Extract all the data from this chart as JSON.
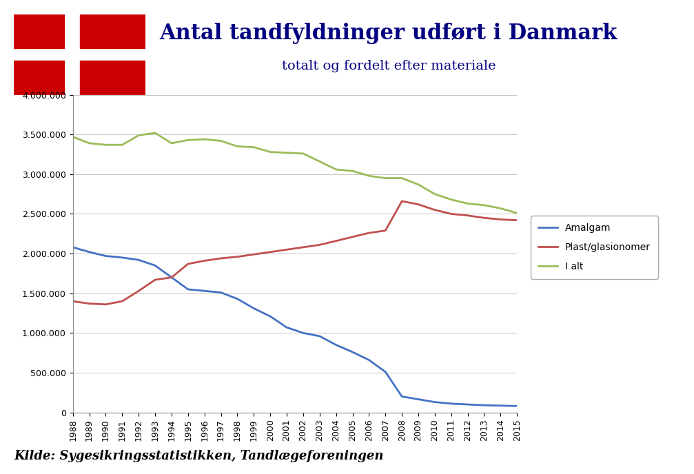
{
  "title_line1": "Antal tandfyldninger udført i Danmark",
  "title_line2": "totalt og fordelt efter materiale",
  "title_color": "#000080",
  "subtitle_color": "#000080",
  "background_color": "#ffffff",
  "chart_bg_color": "#ffffff",
  "years": [
    1988,
    1989,
    1990,
    1991,
    1992,
    1993,
    1994,
    1995,
    1996,
    1997,
    1998,
    1999,
    2000,
    2001,
    2002,
    2003,
    2004,
    2005,
    2006,
    2007,
    2008,
    2009,
    2010,
    2011,
    2012,
    2013,
    2014,
    2015
  ],
  "amalgam": [
    2080000,
    2020000,
    1970000,
    1950000,
    1920000,
    1850000,
    1700000,
    1550000,
    1530000,
    1510000,
    1430000,
    1310000,
    1210000,
    1070000,
    1000000,
    960000,
    850000,
    760000,
    660000,
    510000,
    200000,
    165000,
    130000,
    110000,
    100000,
    90000,
    85000,
    80000
  ],
  "plast": [
    1400000,
    1370000,
    1360000,
    1400000,
    1530000,
    1670000,
    1700000,
    1870000,
    1910000,
    1940000,
    1960000,
    1990000,
    2020000,
    2050000,
    2080000,
    2110000,
    2160000,
    2210000,
    2260000,
    2290000,
    2660000,
    2620000,
    2550000,
    2500000,
    2480000,
    2450000,
    2430000,
    2420000
  ],
  "ialt": [
    3470000,
    3390000,
    3370000,
    3370000,
    3490000,
    3520000,
    3390000,
    3430000,
    3440000,
    3420000,
    3350000,
    3340000,
    3280000,
    3270000,
    3260000,
    3160000,
    3060000,
    3040000,
    2980000,
    2950000,
    2950000,
    2870000,
    2750000,
    2680000,
    2630000,
    2610000,
    2570000,
    2510000
  ],
  "amalgam_color": "#4472C4",
  "plast_color": "#C0504D",
  "ialt_color": "#9BBB59",
  "ylim": [
    0,
    4000000
  ],
  "yticks": [
    0,
    500000,
    1000000,
    1500000,
    2000000,
    2500000,
    3000000,
    3500000,
    4000000
  ],
  "ytick_labels": [
    "0",
    "500.000",
    "1.000.000",
    "1.500.000",
    "2.000.000",
    "2.500.000",
    "3.000.000",
    "3.500.000",
    "4.000.000"
  ],
  "legend_labels": [
    "Amalgam",
    "Plast/glasionomer",
    "I alt"
  ],
  "source_text": "Kilde: Sygesikringsstatistikken, Tandlægeforeningen",
  "flag_red": "#CC0000",
  "flag_white": "#ffffff",
  "line_width": 2.0
}
